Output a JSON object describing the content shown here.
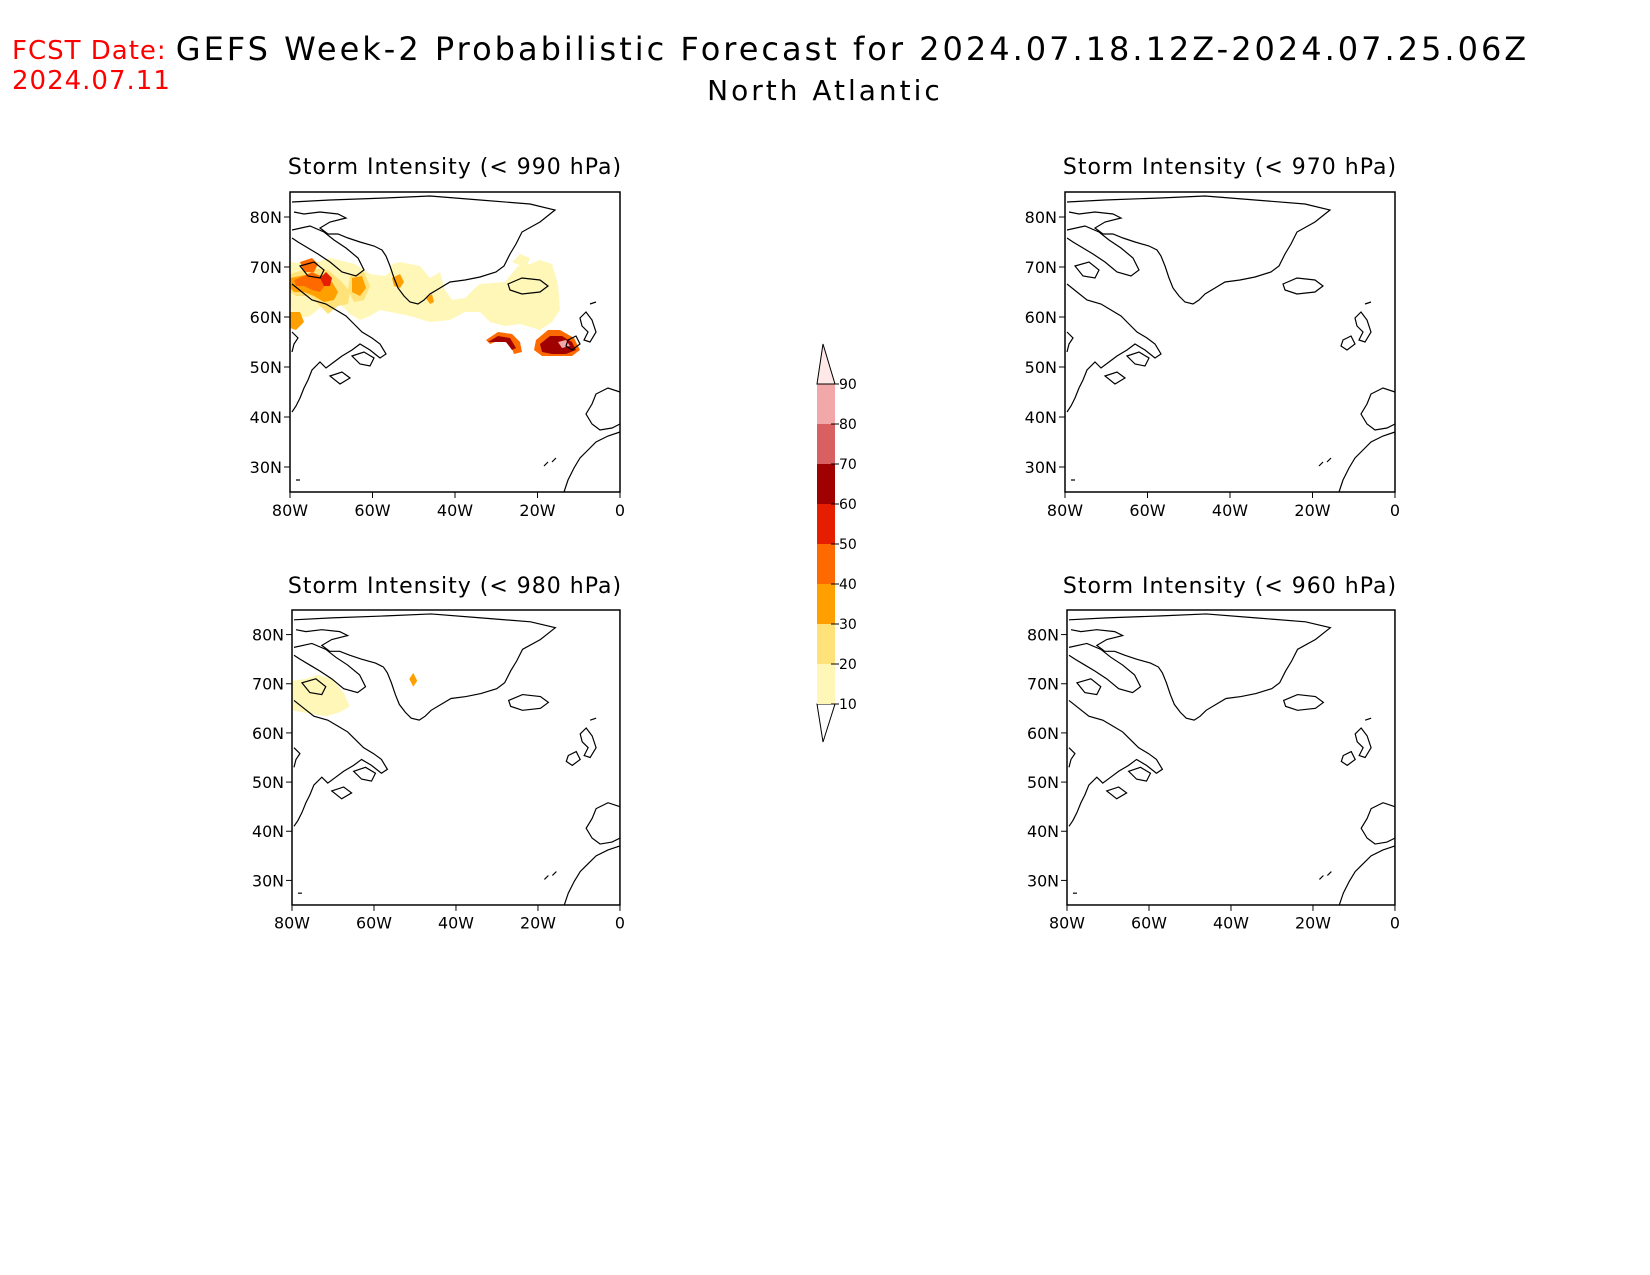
{
  "header": {
    "fcst_label": "FCST Date:",
    "fcst_date": "2024.07.11",
    "title": "GEFS Week-2 Probabilistic Forecast for 2024.07.18.12Z-2024.07.25.06Z",
    "region": "North Atlantic"
  },
  "panels": [
    {
      "title": "Storm Intensity (< 990 hPa)",
      "has_data": true
    },
    {
      "title": "Storm Intensity (< 970 hPa)",
      "has_data": false
    },
    {
      "title": "Storm Intensity (< 980 hPa)",
      "has_data": true
    },
    {
      "title": "Storm Intensity (< 960 hPa)",
      "has_data": false
    }
  ],
  "axes": {
    "lon_labels": [
      "80W",
      "60W",
      "40W",
      "20W",
      "0"
    ],
    "lat_labels": [
      "80N",
      "70N",
      "60N",
      "50N",
      "40N",
      "30N"
    ]
  },
  "colorbar": {
    "levels": [
      "10",
      "20",
      "30",
      "40",
      "50",
      "60",
      "70",
      "80",
      "90"
    ],
    "colors": [
      "#fff7b8",
      "#ffe27a",
      "#ffa000",
      "#ff6a00",
      "#e61e00",
      "#a00000",
      "#d96060",
      "#f2a8a8",
      "#ffe8e8"
    ]
  },
  "colors": {
    "fcst_text": "#ff0000",
    "coast": "#000000"
  }
}
